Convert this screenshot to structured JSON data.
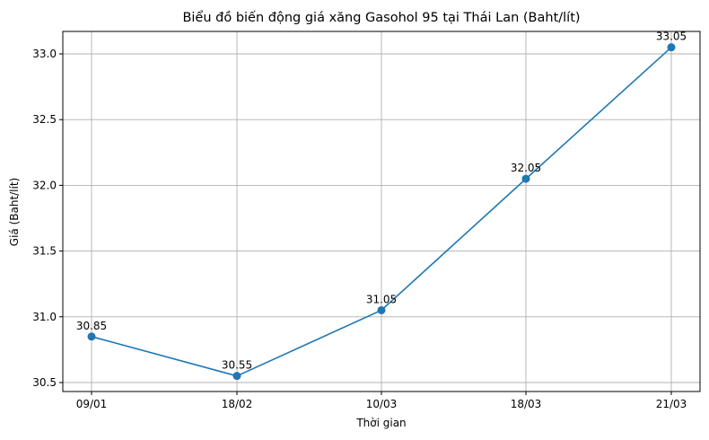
{
  "chart_data": {
    "type": "line",
    "title": "Biểu đồ biến động giá xăng Gasohol 95 tại Thái Lan (Baht/lít)",
    "xlabel": "Thời gian",
    "ylabel": "Giá (Baht/lít)",
    "categories": [
      "09/01",
      "18/02",
      "10/03",
      "18/03",
      "21/03"
    ],
    "series": [
      {
        "name": "Gasohol 95",
        "values": [
          30.85,
          30.55,
          31.05,
          32.05,
          33.05
        ],
        "color": "#1f77b4",
        "marker": "circle"
      }
    ],
    "data_labels": [
      "30.85",
      "30.55",
      "31.05",
      "32.05",
      "33.05"
    ],
    "yticks": [
      "30.5",
      "31.0",
      "31.5",
      "32.0",
      "32.5",
      "33.0"
    ],
    "ylim": [
      30.425,
      33.175
    ],
    "grid": true,
    "legend": null
  }
}
